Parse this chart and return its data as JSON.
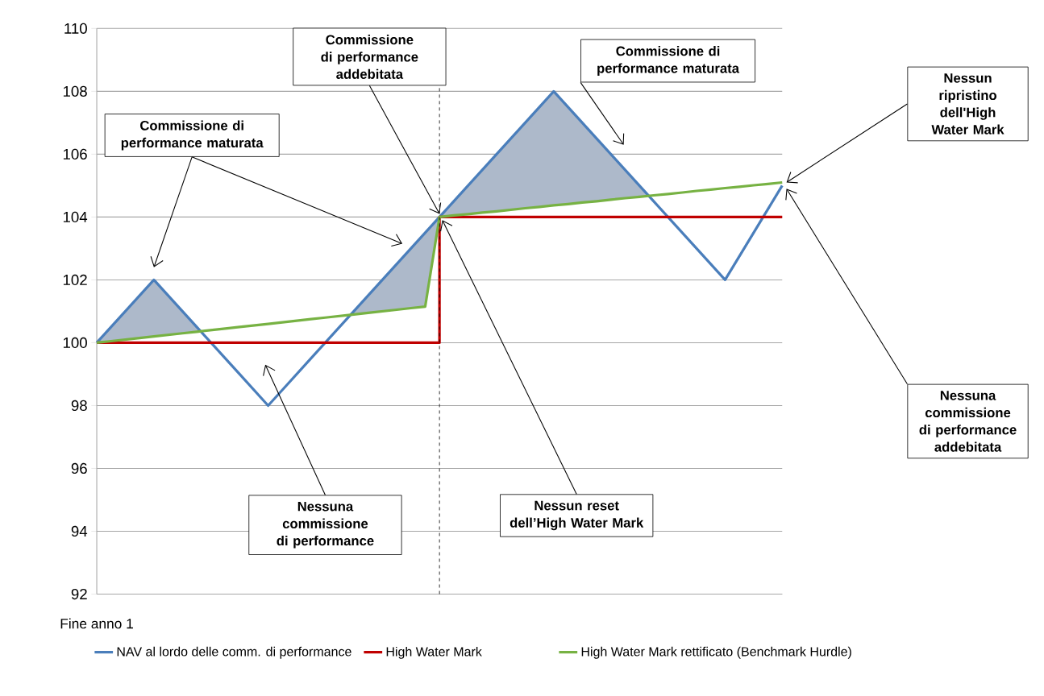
{
  "chart_data": {
    "type": "line",
    "categories": [
      "Fine anno 1",
      null,
      null,
      null,
      null,
      null,
      null,
      null,
      null,
      null,
      null,
      null,
      null,
      null,
      null,
      null,
      null,
      null,
      null,
      null,
      null,
      null,
      null,
      null,
      null,
      null,
      null,
      null,
      null,
      null,
      null,
      null,
      null,
      null,
      null,
      null,
      null,
      null,
      null,
      null,
      null,
      null,
      null,
      null,
      null,
      null,
      null,
      null,
      null
    ],
    "ylim": [
      92,
      110
    ],
    "yticks": [
      92,
      94,
      96,
      98,
      100,
      102,
      104,
      106,
      108,
      110
    ],
    "grid": "y",
    "legend": "bottom",
    "marker": "none",
    "series": [
      {
        "name": "NAV al lordo delle comm. di performance",
        "color": "#4a7ebb",
        "values": [
          100,
          100.5,
          101,
          101.5,
          102,
          101.5,
          101,
          100.5,
          100,
          99.5,
          99,
          98.5,
          98,
          98.5,
          99,
          99.5,
          100,
          100.5,
          101,
          101.5,
          102,
          102.5,
          103,
          103.5,
          104,
          104.5,
          105,
          105.5,
          106,
          106.5,
          107,
          107.5,
          108,
          107.5,
          107,
          106.5,
          106,
          105.5,
          105,
          104.5,
          104,
          103.5,
          103,
          102.5,
          102,
          102.75,
          103.5,
          104.25,
          105
        ]
      },
      {
        "name": "High Water Mark",
        "type": "step",
        "color": "#c00000",
        "values": [
          100,
          100,
          100,
          100,
          100,
          100,
          100,
          100,
          100,
          100,
          100,
          100,
          100,
          100,
          100,
          100,
          100,
          100,
          100,
          100,
          100,
          100,
          100,
          100,
          104,
          104,
          104,
          104,
          104,
          104,
          104,
          104,
          104,
          104,
          104,
          104,
          104,
          104,
          104,
          104,
          104,
          104,
          104,
          104,
          104,
          104,
          104,
          104,
          104
        ]
      },
      {
        "name": "High Water Mark rettificato (Benchmark Hurdle)",
        "color": "#77b243",
        "values": [
          100,
          100.05,
          100.1,
          100.15,
          100.2,
          100.25,
          100.3,
          100.35,
          100.4,
          100.45,
          100.5,
          100.55,
          100.6,
          100.65,
          100.7,
          100.75,
          100.8,
          100.85,
          100.9,
          100.95,
          101,
          101.05,
          101.1,
          101.15,
          104,
          104.05,
          104.09,
          104.14,
          104.18,
          104.23,
          104.28,
          104.32,
          104.37,
          104.41,
          104.46,
          104.5,
          104.55,
          104.6,
          104.64,
          104.69,
          104.73,
          104.78,
          104.83,
          104.87,
          104.92,
          104.96,
          105.01,
          105.05,
          105.1
        ]
      }
    ],
    "annotations": [
      "Commissione di performance maturata",
      "Commissione di performance addebitata",
      "Commissione di performance maturata",
      "Nessun ripristino dell'High Water Mark",
      "Nessuna commissione di performance addebitata",
      "Nessun reset dell’High Water Mark",
      "Nessuna commissione di performance"
    ]
  }
}
